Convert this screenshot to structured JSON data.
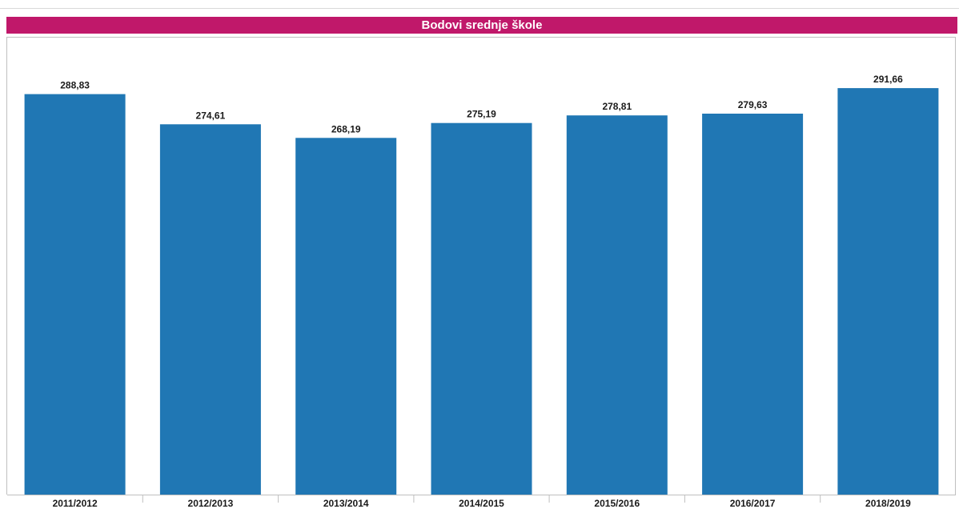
{
  "chart_data": {
    "type": "bar",
    "title": "Bodovi srednje škole",
    "categories": [
      "2011/2012",
      "2012/2013",
      "2013/2014",
      "2014/2015",
      "2015/2016",
      "2016/2017",
      "2018/2019"
    ],
    "values": [
      288.83,
      274.61,
      268.19,
      275.19,
      278.81,
      279.63,
      291.66
    ],
    "value_labels": [
      "288,83",
      "274,61",
      "268,19",
      "275,19",
      "278,81",
      "279,63",
      "291,66"
    ],
    "bar_color": "#2077b4",
    "title_bar_color": "#c0186a",
    "xlabel": "",
    "ylabel": "",
    "ylim": [
      100,
      300
    ],
    "grid": false,
    "legend": "none"
  }
}
